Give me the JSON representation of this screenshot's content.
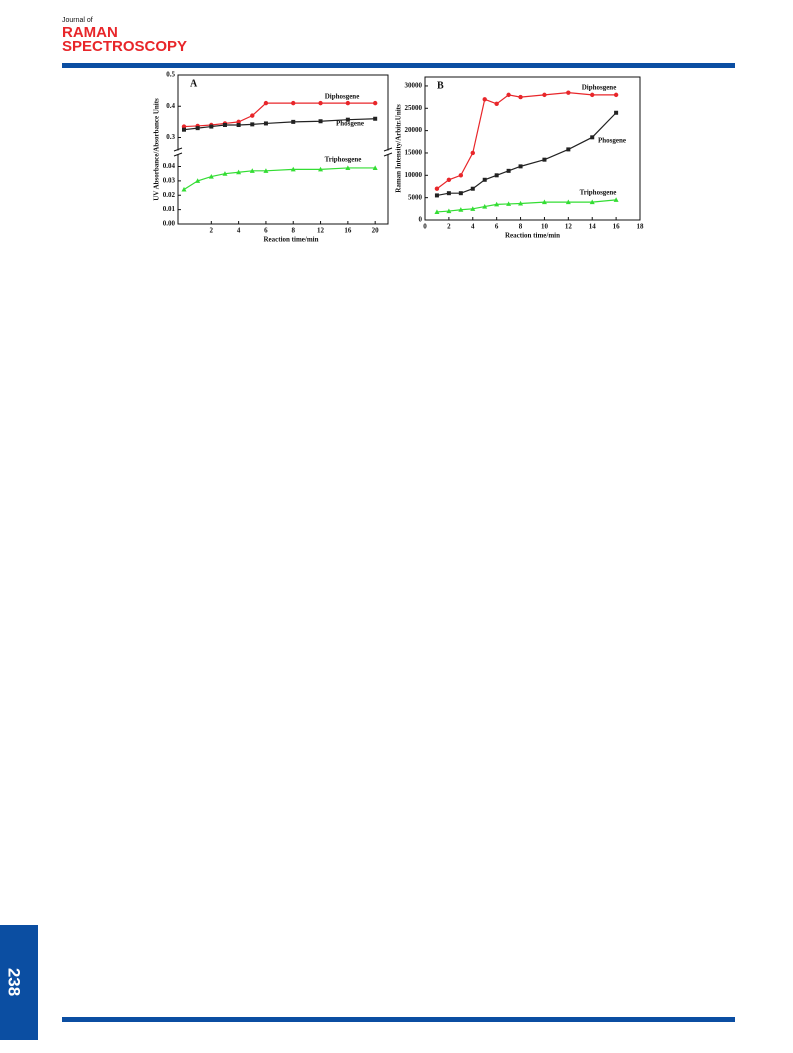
{
  "header": {
    "journal_prefix": "Journal of",
    "journal_line1": "RAMAN",
    "journal_line2": "SPECTROSCOPY"
  },
  "page_number": "238",
  "chart_data": [
    {
      "type": "scatter",
      "panel_label": "A",
      "x_label": "Reaction time/min",
      "y_label": "UV Absorbance/Absorbance Units",
      "categories": [
        null,
        null,
        "2",
        null,
        "4",
        null,
        "6",
        null,
        "8",
        null,
        "12",
        null,
        "16",
        null,
        "20"
      ],
      "ylim": [
        0,
        0.048
      ],
      "yticks": [
        {
          "value": 0,
          "label": "0.00"
        },
        {
          "value": 0.01,
          "label": "0.01"
        },
        {
          "value": 0.02,
          "label": "0.02"
        },
        {
          "value": 0.03,
          "label": "0.03"
        },
        {
          "value": 0.04,
          "label": "0.04"
        }
      ],
      "ylim_upper": [
        0.26,
        0.5
      ],
      "yticks_upper": [
        0.3,
        0.4,
        0.5
      ],
      "axis_break": true,
      "series": [
        {
          "name": "Diphosgene",
          "color": "#e8262a",
          "marker": "circle",
          "axis": "upper",
          "values": [
            0.335,
            0.337,
            0.34,
            0.345,
            0.35,
            0.37,
            0.41,
            null,
            0.41,
            null,
            0.41,
            null,
            0.41,
            null,
            0.41
          ]
        },
        {
          "name": "Phosgene",
          "color": "#222222",
          "marker": "square",
          "axis": "upper",
          "values": [
            0.325,
            0.33,
            0.335,
            0.34,
            0.34,
            0.342,
            0.345,
            null,
            0.35,
            null,
            0.352,
            null,
            0.357,
            null,
            0.36
          ]
        },
        {
          "name": "Triphosgene",
          "color": "#33dd33",
          "marker": "triangle",
          "axis": "lower",
          "values": [
            0.024,
            0.03,
            0.033,
            0.035,
            0.036,
            0.037,
            0.037,
            null,
            0.038,
            null,
            0.038,
            null,
            0.039,
            null,
            0.039
          ]
        }
      ]
    },
    {
      "type": "scatter",
      "panel_label": "B",
      "x_label": "Reaction time/min",
      "y_label": "Raman Intensity/Arbitr.Units",
      "x": [
        1,
        2,
        3,
        4,
        5,
        6,
        7,
        8,
        10,
        12,
        14,
        16
      ],
      "xlim": [
        0,
        18
      ],
      "xticks": [
        0,
        2,
        4,
        6,
        8,
        10,
        12,
        14,
        16,
        18
      ],
      "ylim": [
        0,
        32000
      ],
      "yticks": [
        0,
        5000,
        10000,
        15000,
        20000,
        25000,
        30000
      ],
      "series": [
        {
          "name": "Diphosgene",
          "color": "#e8262a",
          "marker": "circle",
          "values": [
            7000,
            9000,
            10000,
            15000,
            27000,
            26000,
            28000,
            27500,
            28000,
            28500,
            28000,
            28000
          ]
        },
        {
          "name": "Phosgene",
          "color": "#222222",
          "marker": "square",
          "values": [
            5500,
            6000,
            6000,
            7000,
            9000,
            10000,
            11000,
            12000,
            13500,
            15800,
            18500,
            24000
          ]
        },
        {
          "name": "Triphosgene",
          "color": "#33dd33",
          "marker": "triangle",
          "values": [
            1800,
            2000,
            2300,
            2500,
            3000,
            3500,
            3600,
            3700,
            4000,
            4000,
            4000,
            4500
          ]
        }
      ]
    }
  ]
}
